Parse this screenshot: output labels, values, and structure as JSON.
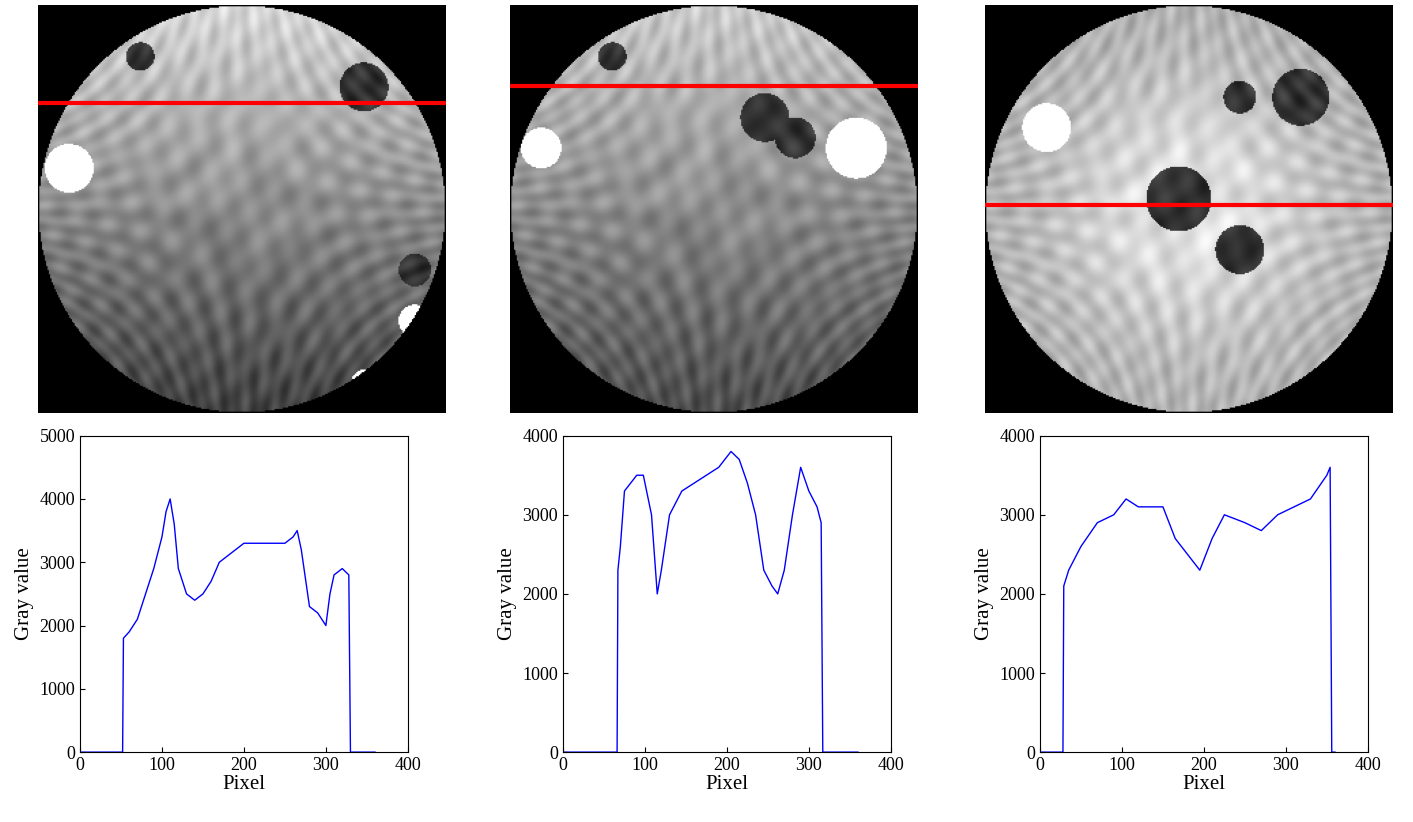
{
  "chart_data": [
    {
      "type": "line",
      "xlabel": "Pixel",
      "ylabel": "Gray value",
      "color": "#0000ff",
      "x": [
        0,
        52,
        53,
        60,
        70,
        80,
        90,
        100,
        105,
        110,
        115,
        120,
        130,
        140,
        150,
        160,
        170,
        180,
        190,
        200,
        210,
        220,
        230,
        240,
        250,
        260,
        265,
        270,
        280,
        290,
        300,
        305,
        310,
        320,
        328,
        330,
        360
      ],
      "values": [
        0,
        0,
        1800,
        1900,
        2100,
        2500,
        2900,
        3400,
        3800,
        4000,
        3600,
        2900,
        2500,
        2400,
        2500,
        2700,
        3000,
        3100,
        3200,
        3300,
        3300,
        3300,
        3300,
        3300,
        3300,
        3400,
        3500,
        3200,
        2300,
        2200,
        2000,
        2500,
        2800,
        2900,
        2800,
        0,
        0
      ],
      "xlim": [
        0,
        400
      ],
      "xticks": [
        0,
        100,
        200,
        300,
        400
      ],
      "ylim": [
        0,
        5000
      ],
      "yticks": [
        0,
        1000,
        2000,
        3000,
        4000,
        5000
      ]
    },
    {
      "type": "line",
      "xlabel": "Pixel",
      "ylabel": "Gray value",
      "color": "#0000ff",
      "x": [
        0,
        66,
        67,
        70,
        75,
        90,
        98,
        108,
        115,
        120,
        130,
        145,
        160,
        175,
        190,
        205,
        215,
        225,
        235,
        245,
        255,
        262,
        270,
        280,
        290,
        300,
        310,
        315,
        317,
        360
      ],
      "values": [
        0,
        0,
        2300,
        2600,
        3300,
        3500,
        3500,
        3000,
        2000,
        2300,
        3000,
        3300,
        3400,
        3500,
        3600,
        3800,
        3700,
        3400,
        3000,
        2300,
        2100,
        2000,
        2300,
        3000,
        3600,
        3300,
        3100,
        2900,
        0,
        0
      ],
      "xlim": [
        0,
        400
      ],
      "xticks": [
        0,
        100,
        200,
        300,
        400
      ],
      "ylim": [
        0,
        4000
      ],
      "yticks": [
        0,
        1000,
        2000,
        3000,
        4000
      ]
    },
    {
      "type": "line",
      "xlabel": "Pixel",
      "ylabel": "Gray value",
      "color": "#0000ff",
      "x": [
        0,
        28,
        29,
        35,
        50,
        70,
        90,
        105,
        120,
        150,
        165,
        180,
        195,
        210,
        225,
        250,
        270,
        290,
        310,
        330,
        350,
        354,
        356,
        360
      ],
      "values": [
        0,
        0,
        2100,
        2300,
        2600,
        2900,
        3000,
        3200,
        3100,
        3100,
        2700,
        2500,
        2300,
        2700,
        3000,
        2900,
        2800,
        3000,
        3100,
        3200,
        3500,
        3600,
        0,
        0
      ],
      "xlim": [
        0,
        400
      ],
      "xticks": [
        0,
        100,
        200,
        300,
        400
      ],
      "ylim": [
        0,
        4000
      ],
      "yticks": [
        0,
        1000,
        2000,
        3000,
        4000
      ]
    }
  ]
}
